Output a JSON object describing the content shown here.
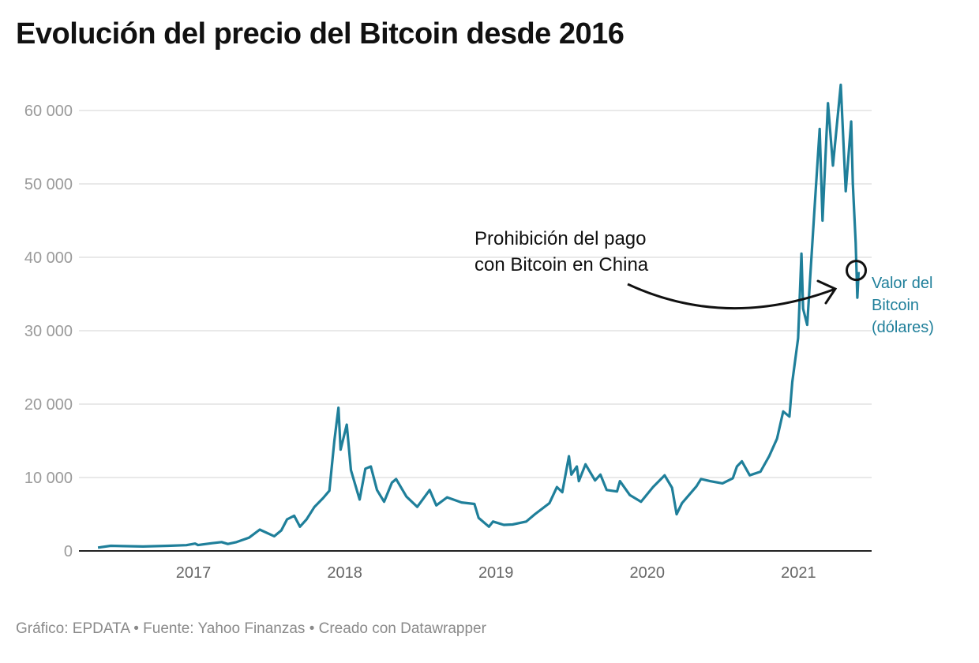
{
  "title": "Evolución del precio del Bitcoin desde 2016",
  "footer": "Gráfico: EPDATA • Fuente: Yahoo Finanzas • Creado con Datawrapper",
  "chart_data": {
    "type": "line",
    "title": "Evolución del precio del Bitcoin desde 2016",
    "xlabel": "",
    "ylabel": "",
    "xlim": [
      "2016-05-01",
      "2021-07-15"
    ],
    "ylim": [
      0,
      65000
    ],
    "grid": true,
    "yticks": [
      0,
      10000,
      20000,
      30000,
      40000,
      50000,
      60000
    ],
    "ytick_labels": [
      "0",
      "10 000",
      "20 000",
      "30 000",
      "40 000",
      "50 000",
      "60 000"
    ],
    "xticks": [
      "2017",
      "2018",
      "2019",
      "2020",
      "2021"
    ],
    "line_color": "#1f7f9a",
    "series": [
      {
        "name": "Valor del Bitcoin (dólares)",
        "label_lines": [
          "Valor del",
          "Bitcoin",
          "(dólares)"
        ],
        "points": [
          [
            "2016-05-15",
            450
          ],
          [
            "2016-06-15",
            700
          ],
          [
            "2016-07-15",
            660
          ],
          [
            "2016-09-01",
            600
          ],
          [
            "2016-11-01",
            700
          ],
          [
            "2016-12-15",
            780
          ],
          [
            "2017-01-05",
            1000
          ],
          [
            "2017-01-12",
            800
          ],
          [
            "2017-02-15",
            1050
          ],
          [
            "2017-03-10",
            1200
          ],
          [
            "2017-03-25",
            950
          ],
          [
            "2017-04-15",
            1200
          ],
          [
            "2017-05-15",
            1800
          ],
          [
            "2017-06-10",
            2900
          ],
          [
            "2017-07-15",
            2000
          ],
          [
            "2017-08-01",
            2800
          ],
          [
            "2017-08-15",
            4300
          ],
          [
            "2017-09-01",
            4800
          ],
          [
            "2017-09-15",
            3300
          ],
          [
            "2017-10-01",
            4300
          ],
          [
            "2017-10-20",
            6000
          ],
          [
            "2017-11-10",
            7200
          ],
          [
            "2017-11-25",
            8200
          ],
          [
            "2017-12-07",
            15000
          ],
          [
            "2017-12-17",
            19500
          ],
          [
            "2017-12-22",
            13800
          ],
          [
            "2018-01-06",
            17200
          ],
          [
            "2018-01-16",
            11000
          ],
          [
            "2018-02-06",
            7000
          ],
          [
            "2018-02-20",
            11200
          ],
          [
            "2018-03-05",
            11500
          ],
          [
            "2018-03-20",
            8300
          ],
          [
            "2018-04-06",
            6700
          ],
          [
            "2018-04-25",
            9300
          ],
          [
            "2018-05-05",
            9800
          ],
          [
            "2018-05-30",
            7400
          ],
          [
            "2018-06-25",
            6000
          ],
          [
            "2018-07-25",
            8300
          ],
          [
            "2018-08-10",
            6200
          ],
          [
            "2018-09-05",
            7300
          ],
          [
            "2018-10-10",
            6600
          ],
          [
            "2018-11-10",
            6400
          ],
          [
            "2018-11-20",
            4500
          ],
          [
            "2018-12-15",
            3300
          ],
          [
            "2018-12-25",
            4000
          ],
          [
            "2019-01-20",
            3550
          ],
          [
            "2019-02-10",
            3600
          ],
          [
            "2019-03-15",
            4000
          ],
          [
            "2019-04-05",
            5000
          ],
          [
            "2019-05-10",
            6500
          ],
          [
            "2019-05-28",
            8700
          ],
          [
            "2019-06-10",
            8000
          ],
          [
            "2019-06-26",
            12900
          ],
          [
            "2019-07-02",
            10400
          ],
          [
            "2019-07-15",
            11500
          ],
          [
            "2019-07-20",
            9500
          ],
          [
            "2019-08-05",
            11800
          ],
          [
            "2019-08-28",
            9600
          ],
          [
            "2019-09-10",
            10400
          ],
          [
            "2019-09-25",
            8300
          ],
          [
            "2019-10-20",
            8100
          ],
          [
            "2019-10-27",
            9500
          ],
          [
            "2019-11-20",
            7600
          ],
          [
            "2019-12-17",
            6700
          ],
          [
            "2020-01-15",
            8700
          ],
          [
            "2020-02-12",
            10300
          ],
          [
            "2020-03-01",
            8600
          ],
          [
            "2020-03-12",
            5000
          ],
          [
            "2020-03-25",
            6500
          ],
          [
            "2020-04-29",
            8800
          ],
          [
            "2020-05-10",
            9800
          ],
          [
            "2020-06-01",
            9500
          ],
          [
            "2020-07-01",
            9200
          ],
          [
            "2020-07-26",
            9900
          ],
          [
            "2020-08-05",
            11500
          ],
          [
            "2020-08-17",
            12200
          ],
          [
            "2020-09-05",
            10300
          ],
          [
            "2020-10-01",
            10800
          ],
          [
            "2020-10-22",
            12900
          ],
          [
            "2020-11-10",
            15300
          ],
          [
            "2020-11-25",
            19000
          ],
          [
            "2020-12-10",
            18300
          ],
          [
            "2020-12-17",
            23000
          ],
          [
            "2020-12-31",
            29000
          ],
          [
            "2021-01-08",
            40500
          ],
          [
            "2021-01-12",
            33000
          ],
          [
            "2021-01-22",
            30800
          ],
          [
            "2021-02-08",
            46000
          ],
          [
            "2021-02-21",
            57500
          ],
          [
            "2021-02-28",
            45000
          ],
          [
            "2021-03-13",
            61000
          ],
          [
            "2021-03-25",
            52500
          ],
          [
            "2021-04-13",
            63500
          ],
          [
            "2021-04-25",
            49000
          ],
          [
            "2021-05-08",
            58500
          ],
          [
            "2021-05-12",
            50000
          ],
          [
            "2021-05-19",
            42000
          ],
          [
            "2021-05-23",
            34500
          ],
          [
            "2021-05-26",
            38000
          ]
        ]
      }
    ],
    "annotations": [
      {
        "text_lines": [
          "Prohibición del pago",
          "con Bitcoin en China"
        ],
        "target": [
          "2021-05-26",
          38000
        ]
      }
    ]
  }
}
